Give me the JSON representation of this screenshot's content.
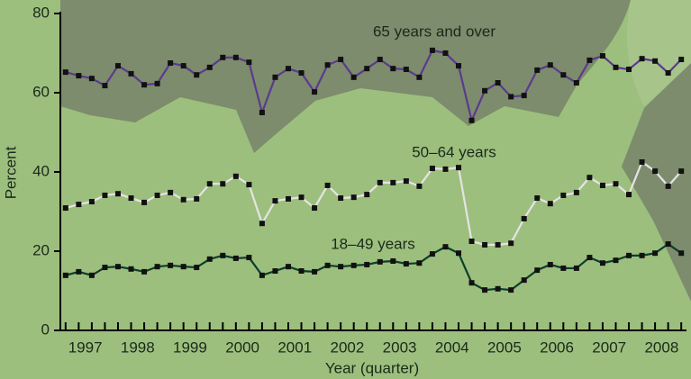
{
  "chart_data": {
    "type": "line",
    "y_label": "Percent",
    "x_label": "Year (quarter)",
    "x": [
      1997,
      1997.25,
      1997.5,
      1997.75,
      1998,
      1998.25,
      1998.5,
      1998.75,
      1999,
      1999.25,
      1999.5,
      1999.75,
      2000,
      2000.25,
      2000.5,
      2000.75,
      2001,
      2001.25,
      2001.5,
      2001.75,
      2002,
      2002.25,
      2002.5,
      2002.75,
      2003,
      2003.25,
      2003.5,
      2003.75,
      2004,
      2004.25,
      2004.5,
      2004.75,
      2005,
      2005.25,
      2005.5,
      2005.75,
      2006,
      2006.25,
      2006.5,
      2006.75,
      2007,
      2007.25,
      2007.5,
      2007.75,
      2008,
      2008.25,
      2008.5,
      2008.75
    ],
    "series": [
      {
        "name": "65 years and over",
        "color": "#5b3a8f",
        "values": [
          65.2,
          64.3,
          63.6,
          61.8,
          66.8,
          64.8,
          62,
          62.3,
          67.5,
          66.8,
          64.5,
          66.4,
          68.9,
          68.9,
          67.7,
          55,
          63.9,
          66.1,
          65,
          60.2,
          67,
          68.4,
          63.9,
          66.1,
          68.4,
          66.1,
          65.9,
          63.9,
          70.7,
          70,
          66.8,
          53,
          60.5,
          62.5,
          59,
          59.3,
          65.7,
          67,
          64.5,
          62.5,
          68.2,
          69.3,
          66.4,
          65.9,
          68.6,
          68,
          65,
          68.4
        ]
      },
      {
        "name": "50–64 years",
        "color": "#e4e4e4",
        "values": [
          30.9,
          31.8,
          32.5,
          34.1,
          34.5,
          33.4,
          32.3,
          34.1,
          34.8,
          33,
          33.2,
          37,
          37,
          38.9,
          36.8,
          27,
          32.7,
          33.2,
          33.6,
          30.9,
          36.6,
          33.4,
          33.6,
          34.3,
          37.3,
          37.3,
          37.7,
          36.4,
          40.9,
          40.7,
          41.1,
          22.5,
          21.6,
          21.6,
          22,
          28.2,
          33.4,
          32,
          34.1,
          34.8,
          38.6,
          36.6,
          37,
          34.3,
          42.5,
          40.2,
          36.4,
          40.2
        ]
      },
      {
        "name": "18–49 years",
        "color": "#0d3d2a",
        "values": [
          13.9,
          14.8,
          13.9,
          15.9,
          16.1,
          15.5,
          14.8,
          16.1,
          16.4,
          16.1,
          15.9,
          18,
          18.9,
          18.2,
          18.4,
          13.9,
          15,
          16.1,
          15,
          14.8,
          16.4,
          16.1,
          16.4,
          16.6,
          17.3,
          17.5,
          16.8,
          17,
          19.3,
          21.1,
          19.5,
          12,
          10.2,
          10.5,
          10.2,
          12.7,
          15.2,
          16.6,
          15.7,
          15.7,
          18.4,
          17,
          17.7,
          18.9,
          18.9,
          19.5,
          21.8,
          19.5
        ]
      }
    ],
    "xlim": [
      1996.9,
      2008.85
    ],
    "xticks": [
      {
        "value": 1997.375,
        "label": "1997"
      },
      {
        "value": 1998.375,
        "label": "1998"
      },
      {
        "value": 1999.375,
        "label": "1999"
      },
      {
        "value": 2000.375,
        "label": "2000"
      },
      {
        "value": 2001.375,
        "label": "2001"
      },
      {
        "value": 2002.375,
        "label": "2002"
      },
      {
        "value": 2003.375,
        "label": "2003"
      },
      {
        "value": 2004.375,
        "label": "2004"
      },
      {
        "value": 2005.375,
        "label": "2005"
      },
      {
        "value": 2006.375,
        "label": "2006"
      },
      {
        "value": 2007.375,
        "label": "2007"
      },
      {
        "value": 2008.375,
        "label": "2008"
      }
    ],
    "ylim": [
      0,
      80
    ],
    "yticks": [
      0,
      20,
      40,
      60,
      80
    ],
    "marker_color": "#111111"
  }
}
